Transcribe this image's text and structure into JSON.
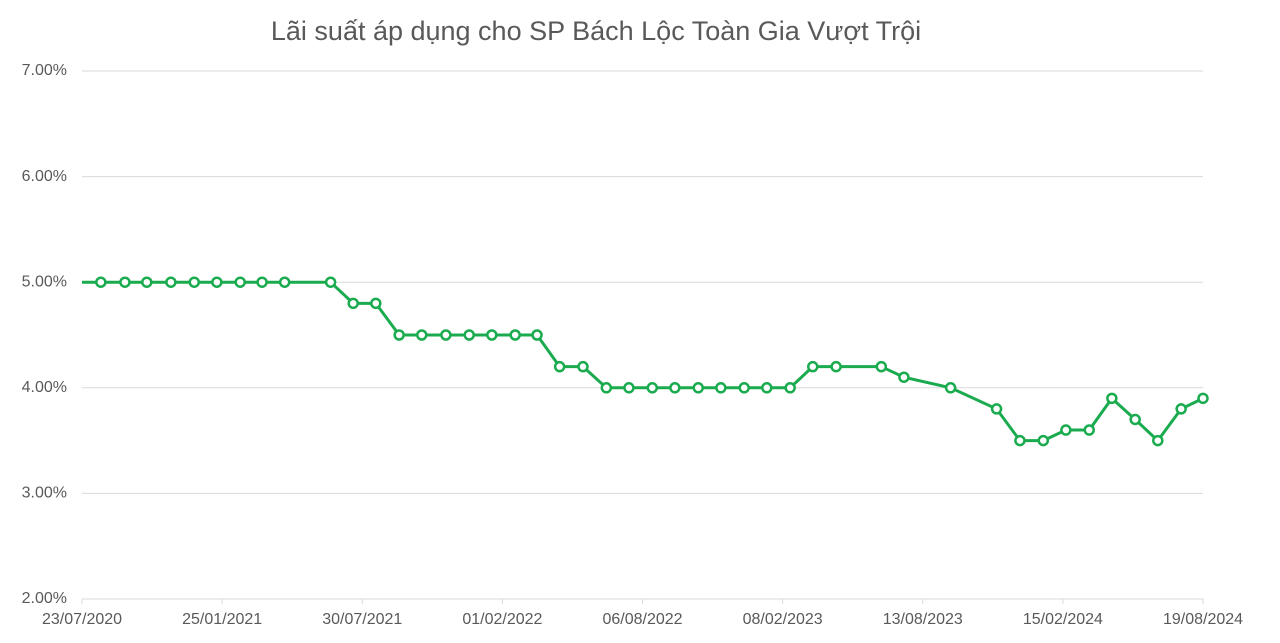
{
  "chart_data": {
    "type": "line",
    "title": "Lãi suất áp dụng cho SP Bách Lộc Toàn Gia Vượt Trội",
    "x": [
      "23/07/2020",
      "17/08/2020",
      "18/09/2020",
      "17/10/2020",
      "18/11/2020",
      "19/12/2020",
      "18/01/2021",
      "18/02/2021",
      "19/03/2021",
      "18/04/2021",
      "18/06/2021",
      "18/07/2021",
      "17/08/2021",
      "17/09/2021",
      "17/10/2021",
      "18/11/2021",
      "19/12/2021",
      "18/01/2022",
      "18/02/2022",
      "19/03/2022",
      "18/04/2022",
      "19/05/2022",
      "19/06/2022",
      "19/07/2022",
      "19/08/2022",
      "18/09/2022",
      "19/10/2022",
      "18/11/2022",
      "19/12/2022",
      "18/01/2023",
      "18/02/2023",
      "20/03/2023",
      "20/04/2023",
      "19/06/2023",
      "19/07/2023",
      "19/09/2023",
      "19/11/2023",
      "20/12/2023",
      "20/01/2024",
      "19/02/2024",
      "21/03/2024",
      "20/04/2024",
      "21/05/2024",
      "20/06/2024",
      "21/07/2024",
      "19/08/2024"
    ],
    "series": [
      {
        "name": "Lãi suất",
        "color": "#1aab4f",
        "values": [
          5.0,
          5.0,
          5.0,
          5.0,
          5.0,
          5.0,
          5.0,
          5.0,
          5.0,
          5.0,
          5.0,
          4.8,
          4.8,
          4.5,
          4.5,
          4.5,
          4.5,
          4.5,
          4.5,
          4.5,
          4.2,
          4.2,
          4.0,
          4.0,
          4.0,
          4.0,
          4.0,
          4.0,
          4.0,
          4.0,
          4.0,
          4.2,
          4.2,
          4.2,
          4.1,
          4.0,
          3.8,
          3.5,
          3.5,
          3.6,
          3.6,
          3.9,
          3.7,
          3.5,
          3.8,
          3.9
        ]
      }
    ],
    "xlim": [
      "23/07/2020",
      "19/08/2024"
    ],
    "xticks": [
      "23/07/2020",
      "25/01/2021",
      "30/07/2021",
      "01/02/2022",
      "06/08/2022",
      "08/02/2023",
      "13/08/2023",
      "15/02/2024",
      "19/08/2024"
    ],
    "ylim": [
      2,
      7
    ],
    "yticks": [
      {
        "value": 2,
        "label": "2.00%"
      },
      {
        "value": 3,
        "label": "3.00%"
      },
      {
        "value": 4,
        "label": "4.00%"
      },
      {
        "value": 5,
        "label": "5.00%"
      },
      {
        "value": 6,
        "label": "6.00%"
      },
      {
        "value": 7,
        "label": "7.00%"
      }
    ],
    "grid": true
  }
}
